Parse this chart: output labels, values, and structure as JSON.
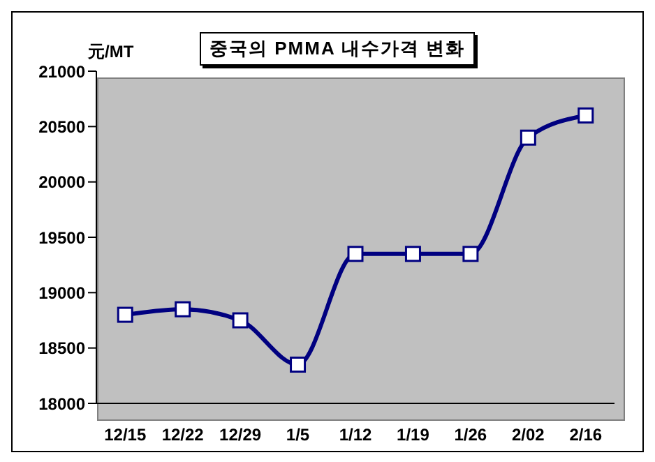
{
  "chart_data": {
    "type": "line",
    "title": "중국의 PMMA 내수가격 변화",
    "ylabel": "元/MT",
    "categories": [
      "12/15",
      "12/22",
      "12/29",
      "1/5",
      "1/12",
      "1/19",
      "1/26",
      "2/02",
      "2/16"
    ],
    "series": [
      {
        "color": "#000080",
        "values": [
          18800,
          18850,
          18750,
          18350,
          19350,
          19350,
          19350,
          20400,
          20600
        ]
      }
    ],
    "ylim": [
      18000,
      21000
    ],
    "yticks": [
      18000,
      18500,
      19000,
      19500,
      20000,
      20500,
      21000
    ],
    "grid": false,
    "legend": false,
    "marker": "square",
    "line_style": "solid"
  }
}
